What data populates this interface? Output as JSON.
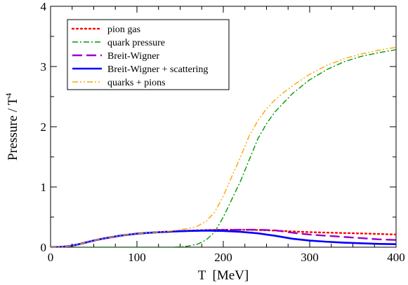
{
  "chart_data": {
    "type": "line",
    "title": "",
    "xlabel": "T  [MeV]",
    "ylabel_main": "Pressure / T",
    "ylabel_sup": "4",
    "xlim": [
      0,
      400
    ],
    "ylim": [
      0,
      4
    ],
    "xticks": [
      0,
      100,
      200,
      300,
      400
    ],
    "yticks": [
      0,
      1,
      2,
      3,
      4
    ],
    "grid": false,
    "legend_position": "top-left",
    "series": [
      {
        "name": "pion gas",
        "color": "#ff0000",
        "style": "dotted",
        "x": [
          0,
          10,
          20,
          30,
          40,
          50,
          60,
          80,
          100,
          120,
          140,
          160,
          180,
          200,
          220,
          240,
          260,
          280,
          300,
          320,
          340,
          360,
          380,
          400
        ],
        "y": [
          0,
          0.003,
          0.015,
          0.04,
          0.075,
          0.11,
          0.14,
          0.19,
          0.225,
          0.245,
          0.262,
          0.275,
          0.285,
          0.29,
          0.29,
          0.285,
          0.275,
          0.262,
          0.25,
          0.242,
          0.235,
          0.228,
          0.22,
          0.21
        ]
      },
      {
        "name": "quark pressure",
        "color": "#009900",
        "style": "dashdot",
        "x": [
          0,
          100,
          140,
          150,
          160,
          170,
          180,
          190,
          200,
          210,
          220,
          230,
          240,
          250,
          260,
          270,
          280,
          300,
          320,
          340,
          360,
          380,
          400
        ],
        "y": [
          0,
          0,
          0,
          0.005,
          0.02,
          0.05,
          0.12,
          0.25,
          0.5,
          0.8,
          1.1,
          1.45,
          1.8,
          2.05,
          2.25,
          2.4,
          2.55,
          2.78,
          2.95,
          3.08,
          3.17,
          3.23,
          3.28
        ]
      },
      {
        "name": "Breit-Wigner",
        "color": "#9900cc",
        "style": "dashed",
        "x": [
          0,
          10,
          20,
          30,
          40,
          50,
          60,
          80,
          100,
          120,
          140,
          160,
          180,
          200,
          220,
          240,
          260,
          280,
          300,
          320,
          340,
          360,
          380,
          400
        ],
        "y": [
          0,
          0.003,
          0.015,
          0.04,
          0.075,
          0.11,
          0.14,
          0.19,
          0.225,
          0.245,
          0.26,
          0.27,
          0.28,
          0.285,
          0.29,
          0.29,
          0.28,
          0.24,
          0.21,
          0.19,
          0.17,
          0.15,
          0.13,
          0.12
        ]
      },
      {
        "name": "Breit-Wigner + scattering",
        "color": "#0000ff",
        "style": "solid",
        "x": [
          0,
          10,
          20,
          30,
          40,
          50,
          60,
          80,
          100,
          120,
          140,
          160,
          180,
          200,
          220,
          240,
          260,
          280,
          300,
          320,
          340,
          360,
          380,
          400
        ],
        "y": [
          0,
          0.003,
          0.015,
          0.04,
          0.075,
          0.11,
          0.14,
          0.19,
          0.225,
          0.245,
          0.26,
          0.27,
          0.275,
          0.27,
          0.255,
          0.23,
          0.19,
          0.14,
          0.11,
          0.09,
          0.075,
          0.065,
          0.055,
          0.05
        ]
      },
      {
        "name": "quarks + pions",
        "color": "#ffa500",
        "style": "dashdotdot",
        "x": [
          0,
          10,
          20,
          30,
          40,
          50,
          60,
          80,
          100,
          120,
          140,
          150,
          160,
          170,
          180,
          190,
          200,
          210,
          220,
          230,
          240,
          250,
          260,
          270,
          280,
          300,
          320,
          340,
          360,
          380,
          400
        ],
        "y": [
          0,
          0.003,
          0.015,
          0.04,
          0.075,
          0.11,
          0.14,
          0.19,
          0.225,
          0.245,
          0.27,
          0.29,
          0.31,
          0.35,
          0.43,
          0.58,
          0.85,
          1.18,
          1.5,
          1.85,
          2.1,
          2.3,
          2.45,
          2.57,
          2.68,
          2.87,
          3.02,
          3.13,
          3.21,
          3.27,
          3.32
        ]
      }
    ]
  }
}
